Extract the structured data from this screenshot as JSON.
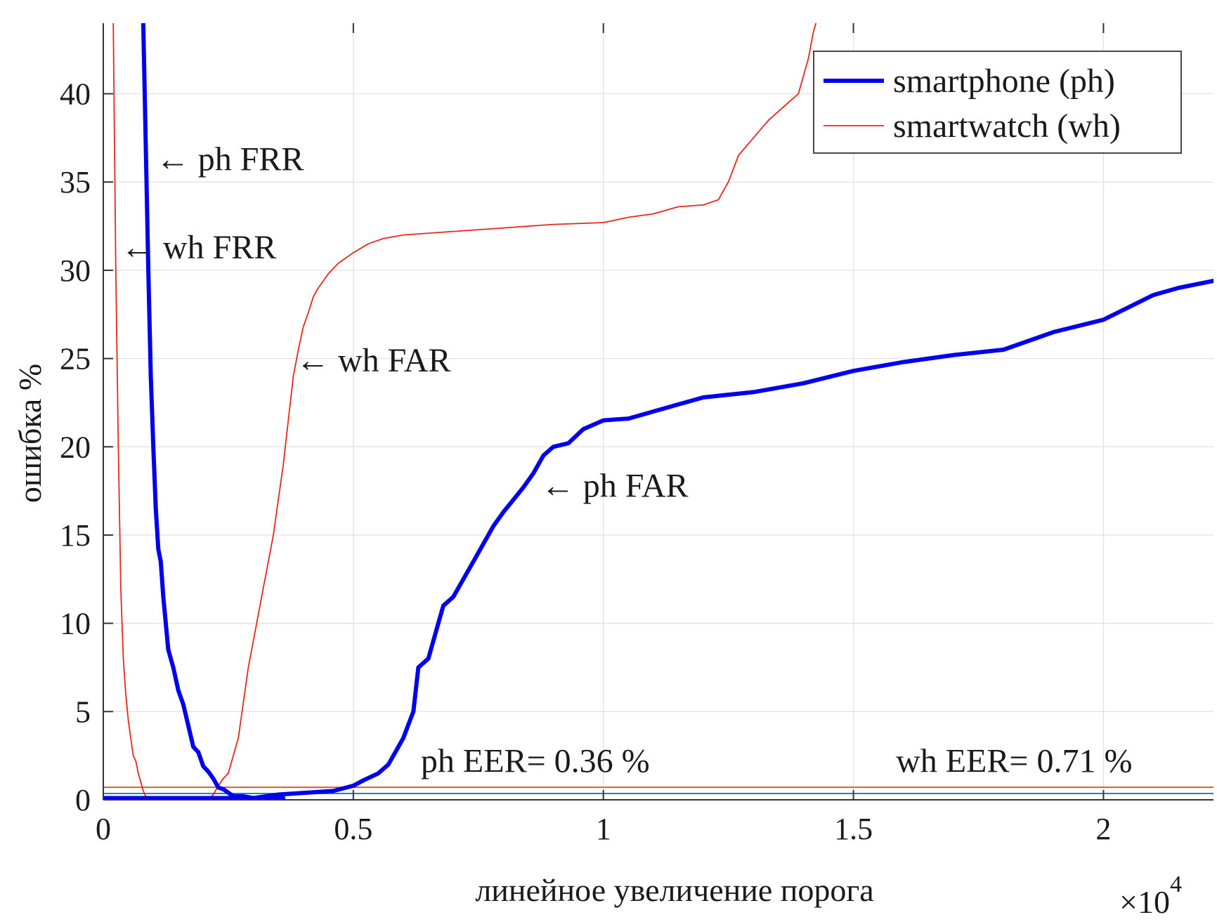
{
  "chart_data": {
    "type": "line",
    "xlabel": "линейное увеличение порога",
    "ylabel": "ошибка %",
    "x_multiplier": {
      "base": "×10",
      "exponent": "4"
    },
    "xlim": [
      0,
      2.22
    ],
    "ylim": [
      0,
      44
    ],
    "x_ticks": [
      {
        "value": 0,
        "label": "0"
      },
      {
        "value": 0.5,
        "label": "0.5"
      },
      {
        "value": 1,
        "label": "1"
      },
      {
        "value": 1.5,
        "label": "1.5"
      },
      {
        "value": 2,
        "label": "2"
      }
    ],
    "y_ticks": [
      {
        "value": 0,
        "label": "0"
      },
      {
        "value": 5,
        "label": "5"
      },
      {
        "value": 10,
        "label": "10"
      },
      {
        "value": 15,
        "label": "15"
      },
      {
        "value": 20,
        "label": "20"
      },
      {
        "value": 25,
        "label": "25"
      },
      {
        "value": 30,
        "label": "30"
      },
      {
        "value": 35,
        "label": "35"
      },
      {
        "value": 40,
        "label": "40"
      }
    ],
    "grid": true,
    "legend": {
      "placement": "top-right",
      "entries": [
        {
          "label": "smartphone (ph)",
          "color": "#0000ee",
          "width": "thick"
        },
        {
          "label": "smartwatch (wh)",
          "color": "#e8261c",
          "width": "thin"
        }
      ]
    },
    "series": [
      {
        "name": "ph FRR",
        "color": "#0000ee",
        "width": "thick",
        "x": [
          0.08,
          0.085,
          0.09,
          0.095,
          0.1,
          0.105,
          0.11,
          0.115,
          0.12,
          0.13,
          0.14,
          0.15,
          0.155,
          0.16,
          0.17,
          0.18,
          0.19,
          0.2,
          0.21,
          0.22,
          0.23,
          0.24,
          0.245,
          0.26,
          0.28,
          0.3,
          0.32,
          0.34,
          0.36
        ],
        "y": [
          44,
          37,
          30,
          24,
          20,
          16.5,
          14.2,
          13.5,
          11.5,
          8.5,
          7.5,
          6.2,
          5.8,
          5.4,
          4.2,
          3.0,
          2.7,
          1.9,
          1.6,
          1.2,
          0.7,
          0.6,
          0.5,
          0.2,
          0.2,
          0.1,
          0.1,
          0.1,
          0.1
        ]
      },
      {
        "name": "ph FAR",
        "color": "#0000ee",
        "width": "thick",
        "x": [
          0.0,
          0.3,
          0.35,
          0.46,
          0.5,
          0.52,
          0.55,
          0.57,
          0.58,
          0.6,
          0.62,
          0.63,
          0.65,
          0.67,
          0.68,
          0.7,
          0.72,
          0.74,
          0.76,
          0.78,
          0.8,
          0.82,
          0.84,
          0.86,
          0.88,
          0.9,
          0.93,
          0.96,
          1.0,
          1.05,
          1.1,
          1.15,
          1.2,
          1.3,
          1.4,
          1.5,
          1.6,
          1.7,
          1.8,
          1.9,
          2.0,
          2.05,
          2.1,
          2.15,
          2.22
        ],
        "y": [
          0.1,
          0.1,
          0.3,
          0.5,
          0.8,
          1.1,
          1.5,
          2.0,
          2.5,
          3.5,
          5.0,
          7.5,
          8.0,
          10.0,
          11.0,
          11.5,
          12.5,
          13.5,
          14.5,
          15.5,
          16.3,
          17.0,
          17.7,
          18.5,
          19.5,
          20.0,
          20.2,
          21.0,
          21.5,
          21.6,
          22.0,
          22.4,
          22.8,
          23.1,
          23.6,
          24.3,
          24.8,
          25.2,
          25.5,
          26.5,
          27.2,
          27.9,
          28.6,
          29.0,
          29.4
        ]
      },
      {
        "name": "wh FRR",
        "color": "#e8261c",
        "width": "thin",
        "x": [
          0.02,
          0.025,
          0.03,
          0.035,
          0.04,
          0.045,
          0.05,
          0.055,
          0.06,
          0.065,
          0.07,
          0.075,
          0.08,
          0.085,
          0.09
        ],
        "y": [
          44,
          30,
          20,
          12,
          8,
          6,
          4.5,
          3.5,
          2.5,
          2.2,
          1.5,
          1.0,
          0.5,
          0.2,
          0.0
        ]
      },
      {
        "name": "wh FAR",
        "color": "#e8261c",
        "width": "thin",
        "x": [
          0.21,
          0.22,
          0.23,
          0.24,
          0.25,
          0.26,
          0.27,
          0.28,
          0.29,
          0.3,
          0.31,
          0.32,
          0.33,
          0.34,
          0.35,
          0.36,
          0.37,
          0.38,
          0.39,
          0.4,
          0.41,
          0.42,
          0.43,
          0.44,
          0.45,
          0.47,
          0.5,
          0.53,
          0.56,
          0.6,
          0.7,
          0.8,
          0.9,
          1.0,
          1.05,
          1.1,
          1.15,
          1.2,
          1.23,
          1.25,
          1.27,
          1.3,
          1.33,
          1.35,
          1.37,
          1.39,
          1.4,
          1.41,
          1.42,
          1.425
        ],
        "y": [
          0.0,
          0.3,
          0.8,
          1.2,
          1.5,
          2.5,
          3.5,
          5.5,
          7.5,
          9.0,
          10.5,
          12.0,
          13.5,
          15.0,
          17.0,
          19.0,
          21.5,
          24.0,
          25.5,
          26.8,
          27.6,
          28.5,
          29.0,
          29.4,
          29.8,
          30.4,
          31.0,
          31.5,
          31.8,
          32.0,
          32.2,
          32.4,
          32.6,
          32.7,
          33.0,
          33.2,
          33.6,
          33.7,
          34.0,
          35.0,
          36.5,
          37.5,
          38.5,
          39.0,
          39.5,
          40.0,
          41.0,
          42.0,
          43.5,
          44.0
        ]
      },
      {
        "name": "wh EER level",
        "color": "#d95319",
        "width": "thin",
        "x": [
          0,
          2.22
        ],
        "y": [
          0.71,
          0.71
        ]
      },
      {
        "name": "ph EER level",
        "color": "#0072bd",
        "width": "thin",
        "x": [
          0,
          2.22
        ],
        "y": [
          0.36,
          0.36
        ]
      },
      {
        "name": "baseline",
        "color": "#7e2f8e",
        "width": "thin",
        "x": [
          0,
          2.22
        ],
        "y": [
          0.0,
          0.0
        ]
      }
    ],
    "annotations": [
      {
        "text": "← ph FRR",
        "x": 0.105,
        "y": 36.3
      },
      {
        "text": "← wh FRR",
        "x": 0.035,
        "y": 31.3
      },
      {
        "text": "← wh FAR",
        "x": 0.385,
        "y": 24.9
      },
      {
        "text": "← ph FAR",
        "x": 0.875,
        "y": 17.8
      },
      {
        "text": "ph EER= 0.36 %",
        "x": 0.635,
        "y": 2.2
      },
      {
        "text": "wh EER= 0.71 %",
        "x": 1.585,
        "y": 2.2
      }
    ]
  }
}
